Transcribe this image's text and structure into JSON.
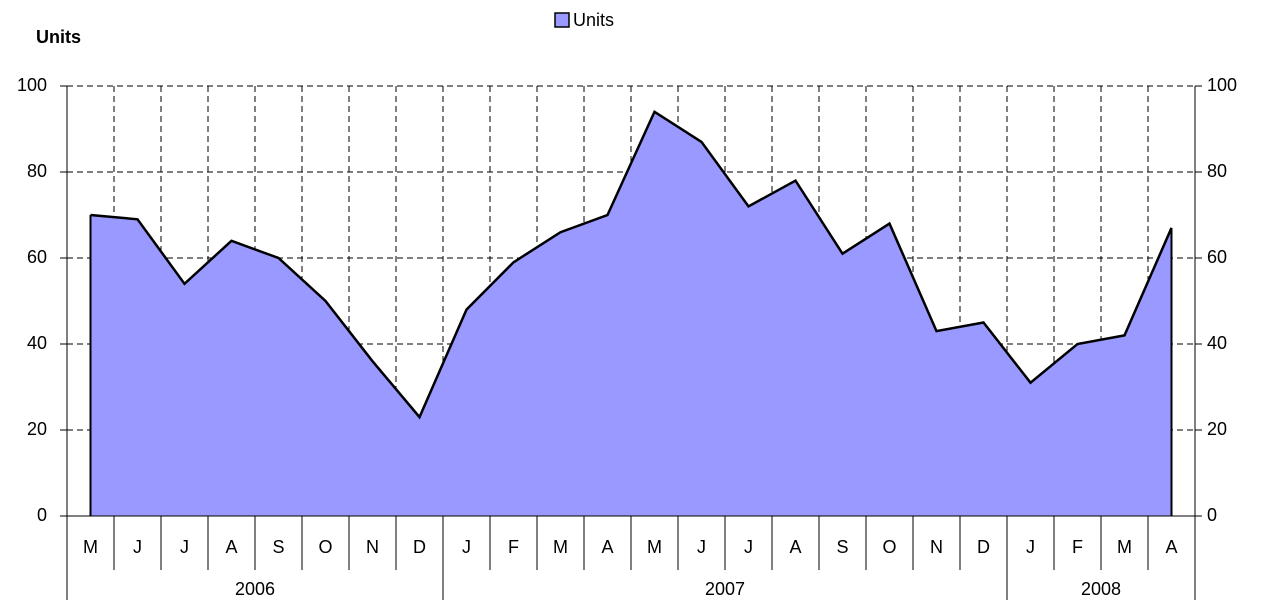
{
  "chart_data": {
    "type": "area",
    "y_axis_label": "Units",
    "category_groups": [
      {
        "label": "2006",
        "categories": [
          "M",
          "J",
          "J",
          "A",
          "S",
          "O",
          "N",
          "D"
        ]
      },
      {
        "label": "2007",
        "categories": [
          "J",
          "F",
          "M",
          "A",
          "M",
          "J",
          "J",
          "A",
          "S",
          "O",
          "N",
          "D"
        ]
      },
      {
        "label": "2008",
        "categories": [
          "J",
          "F",
          "M",
          "A"
        ]
      }
    ],
    "series": [
      {
        "name": "Units",
        "color": "#9999ff",
        "values": [
          70,
          69,
          54,
          64,
          60,
          50,
          36,
          23,
          48,
          59,
          66,
          70,
          94,
          87,
          72,
          78,
          61,
          68,
          43,
          45,
          31,
          40,
          42,
          67
        ]
      }
    ],
    "ylim": [
      0,
      100
    ],
    "yticks": [
      0,
      20,
      40,
      60,
      80,
      100
    ],
    "grid": true,
    "legend": "top"
  }
}
